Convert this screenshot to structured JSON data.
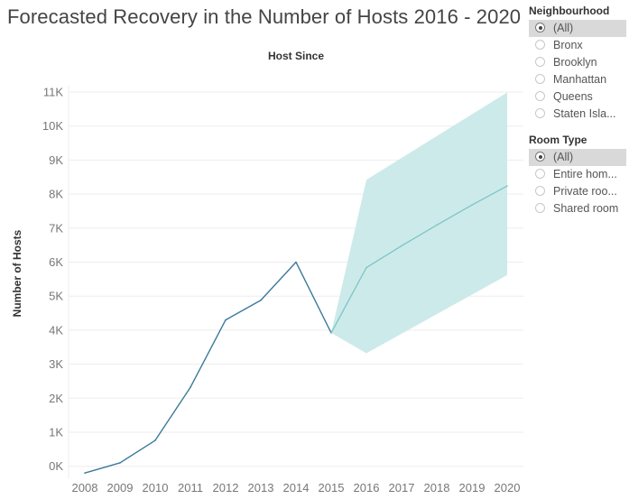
{
  "title": "Forecasted Recovery in the Number of Hosts 2016 - 2020",
  "filters": {
    "neighbourhood": {
      "title": "Neighbourhood",
      "options": [
        "(All)",
        "Bronx",
        "Brooklyn",
        "Manhattan",
        "Queens",
        "Staten Isla..."
      ],
      "selected": 0
    },
    "room_type": {
      "title": "Room Type",
      "options": [
        "(All)",
        "Entire hom...",
        "Private roo...",
        "Shared room"
      ],
      "selected": 0
    }
  },
  "colors": {
    "line": "#3b7a99",
    "forecast_line": "#7fc4c6",
    "band": "#cdeaea",
    "grid": "#ededed",
    "tick": "#777777"
  },
  "chart_data": {
    "type": "line",
    "title": "Host Since",
    "xlabel": "",
    "ylabel": "Number of Hosts",
    "categories": [
      "2008",
      "2009",
      "2010",
      "2011",
      "2012",
      "2013",
      "2014",
      "2015",
      "2016",
      "2017",
      "2018",
      "2019",
      "2020"
    ],
    "y_ticks": [
      0,
      1000,
      2000,
      3000,
      4000,
      5000,
      6000,
      7000,
      8000,
      9000,
      10000,
      11000
    ],
    "y_tick_labels": [
      "0K",
      "1K",
      "2K",
      "3K",
      "4K",
      "5K",
      "6K",
      "7K",
      "8K",
      "9K",
      "10K",
      "11K"
    ],
    "ylim": [
      -300,
      11000
    ],
    "grid": true,
    "series": [
      {
        "kind": "actual",
        "x": [
          2008,
          2009,
          2010,
          2011,
          2012,
          2013,
          2014,
          2015
        ],
        "values": [
          -200,
          100,
          760,
          2320,
          4300,
          4880,
          6000,
          3920
        ]
      },
      {
        "kind": "forecast",
        "x": [
          2015,
          2016,
          2017,
          2018,
          2019,
          2020
        ],
        "values": [
          3920,
          5840,
          6480,
          7090,
          7680,
          8240
        ]
      },
      {
        "kind": "band",
        "x": [
          2015,
          2016,
          2020
        ],
        "upper": [
          3920,
          8420,
          10990
        ],
        "lower": [
          3920,
          3320,
          5620
        ]
      }
    ]
  }
}
